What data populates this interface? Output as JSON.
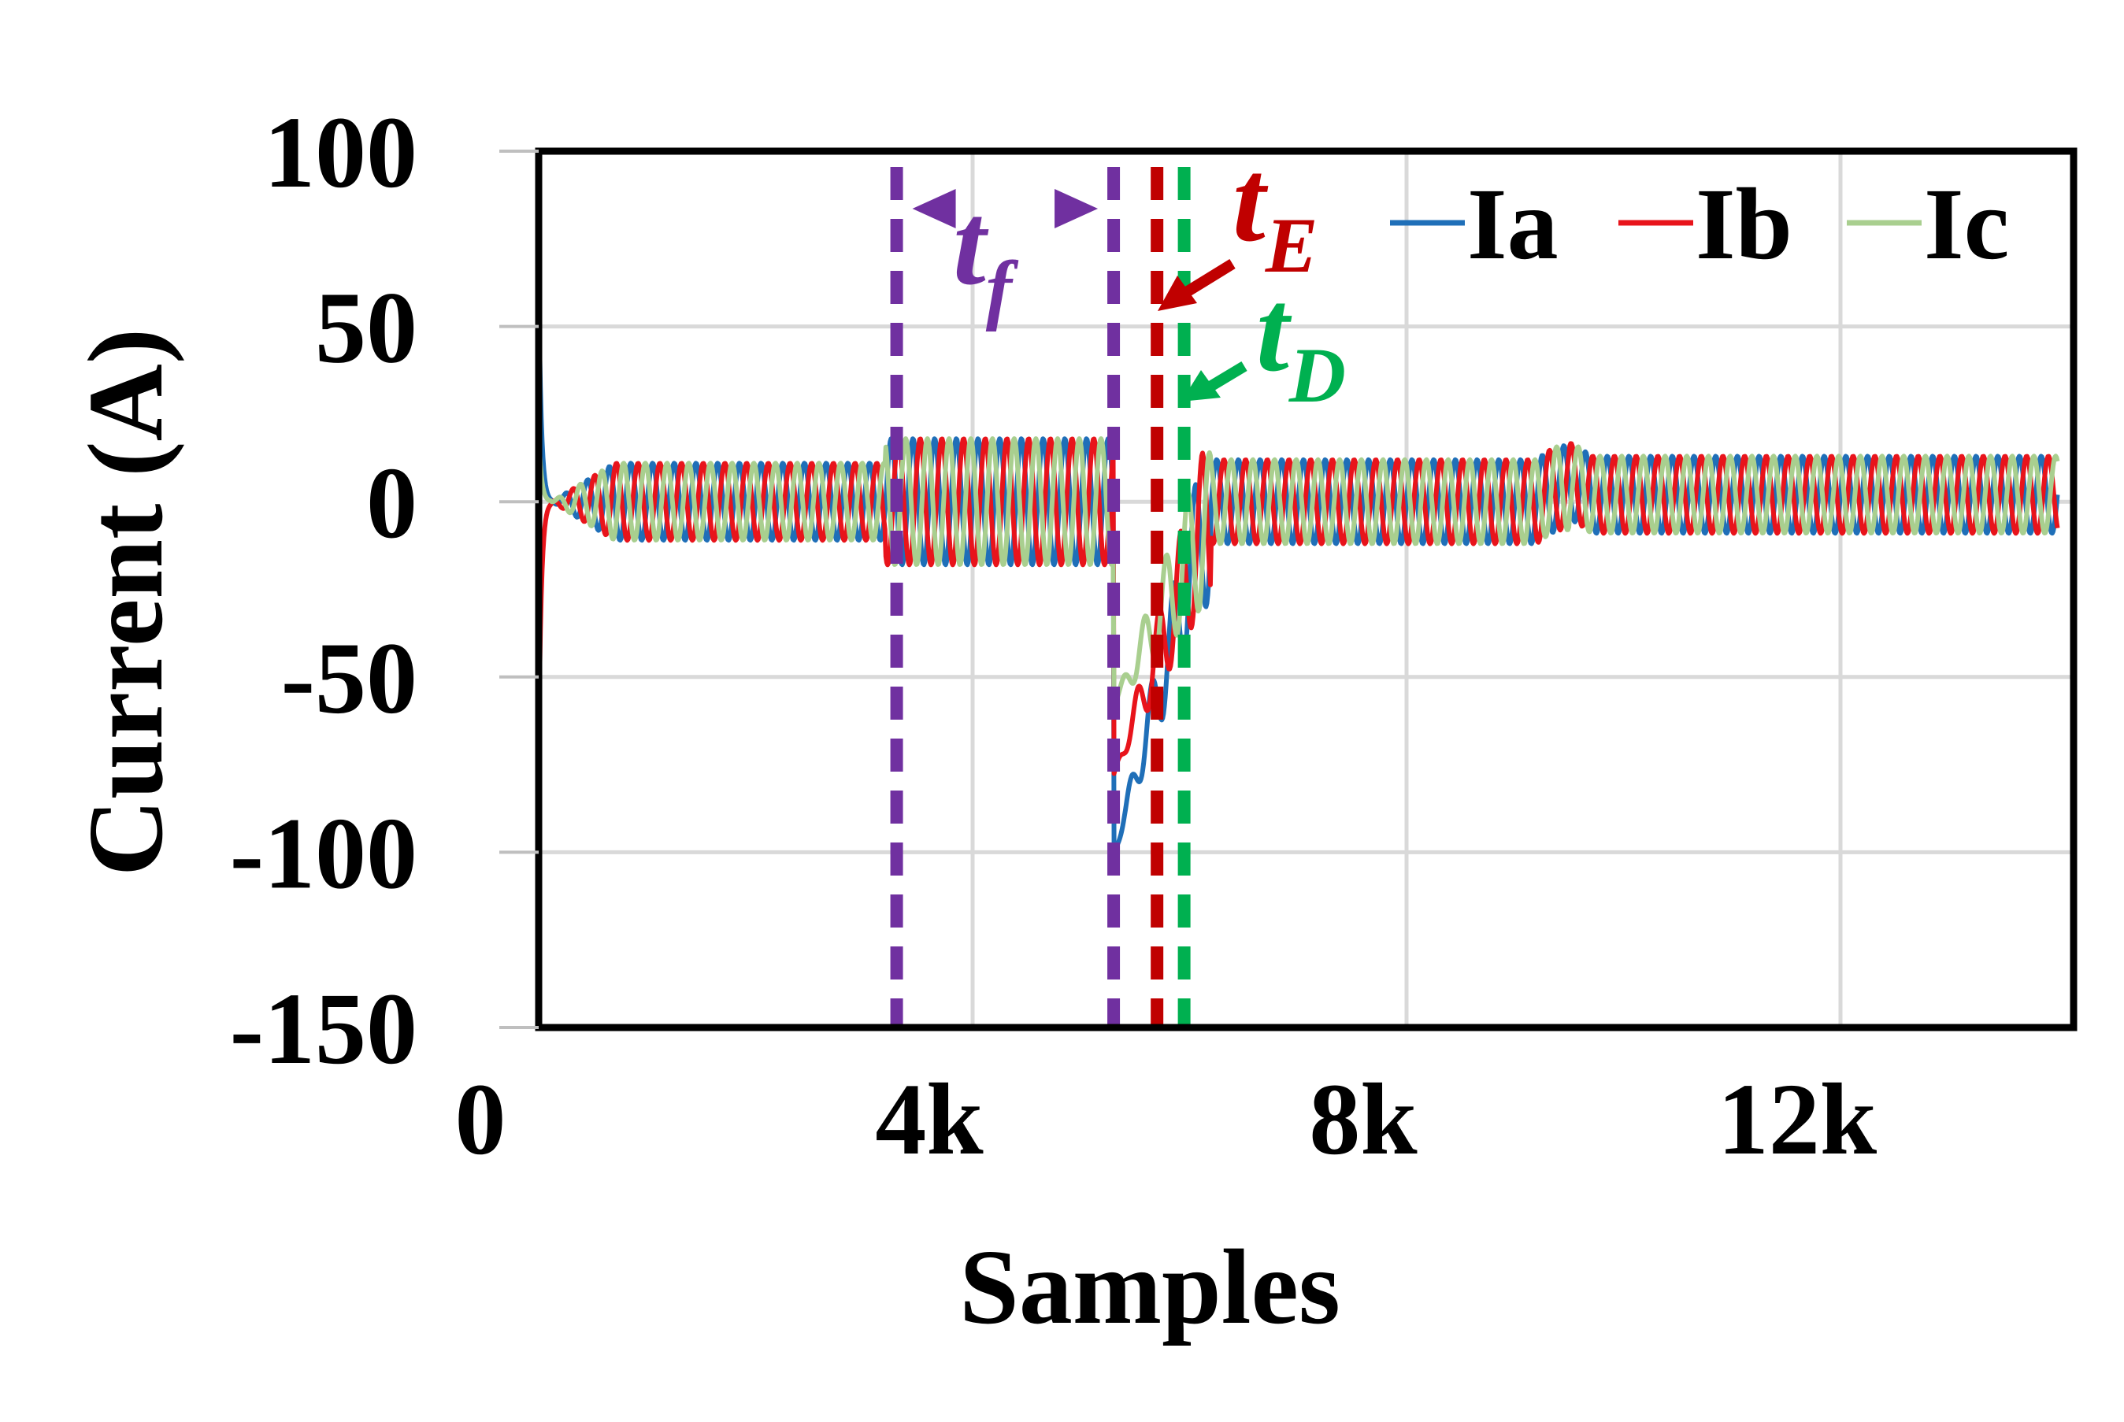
{
  "chart_data": {
    "type": "line",
    "xlabel": "Samples",
    "ylabel": "Current (A)",
    "xlim": [
      0,
      14000
    ],
    "ylim": [
      -150,
      100
    ],
    "x_ticks": [
      {
        "value": 0,
        "label": "0"
      },
      {
        "value": 4000,
        "label": "4k"
      },
      {
        "value": 8000,
        "label": "8k"
      },
      {
        "value": 12000,
        "label": "12k"
      }
    ],
    "y_ticks": [
      {
        "value": 100,
        "label": "100"
      },
      {
        "value": 50,
        "label": "50"
      },
      {
        "value": 0,
        "label": "0"
      },
      {
        "value": -50,
        "label": "-50"
      },
      {
        "value": -100,
        "label": "-100"
      },
      {
        "value": -150,
        "label": "-150"
      }
    ],
    "grid": true,
    "legend_position": "top-right",
    "series": [
      {
        "name": "Ia",
        "color": "#1f6fb8",
        "phase_deg": 0
      },
      {
        "name": "Ib",
        "color": "#e8141b",
        "phase_deg": -120
      },
      {
        "name": "Ic",
        "color": "#a9cf8f",
        "phase_deg": 120
      }
    ],
    "signal_model": {
      "cycle_samples": 200,
      "segments": [
        {
          "from": 0,
          "to": 3200,
          "amplitude": 11,
          "offset": 0
        },
        {
          "from": 3200,
          "to": 5300,
          "amplitude": 18,
          "offset": 0
        },
        {
          "from": 5300,
          "to": 6200,
          "amplitude": 22,
          "offset": -45
        },
        {
          "from": 6200,
          "to": 9500,
          "amplitude": 12,
          "offset": 0
        },
        {
          "from": 9500,
          "to": 14000,
          "amplitude": 11,
          "offset": 2
        }
      ],
      "startup_peaks": {
        "Ia": 62,
        "Ib": -70,
        "Ic": 20
      },
      "fault_min": {
        "Ia": -93,
        "Ib": -70,
        "Ic": -50
      }
    },
    "markers": [
      {
        "name": "fault-start",
        "x": 3300,
        "color": "#7030a0"
      },
      {
        "name": "fault-end",
        "x": 5300,
        "color": "#7030a0"
      },
      {
        "name": "estimate",
        "x": 5700,
        "color": "#c00000"
      },
      {
        "name": "detect",
        "x": 5950,
        "color": "#00b050"
      }
    ],
    "annotations": [
      {
        "id": "tf",
        "base": "t",
        "sub": "f",
        "color": "#7030a0"
      },
      {
        "id": "tE",
        "base": "t",
        "sub": "E",
        "color": "#c00000"
      },
      {
        "id": "tD",
        "base": "t",
        "sub": "D",
        "color": "#00b050"
      }
    ]
  }
}
